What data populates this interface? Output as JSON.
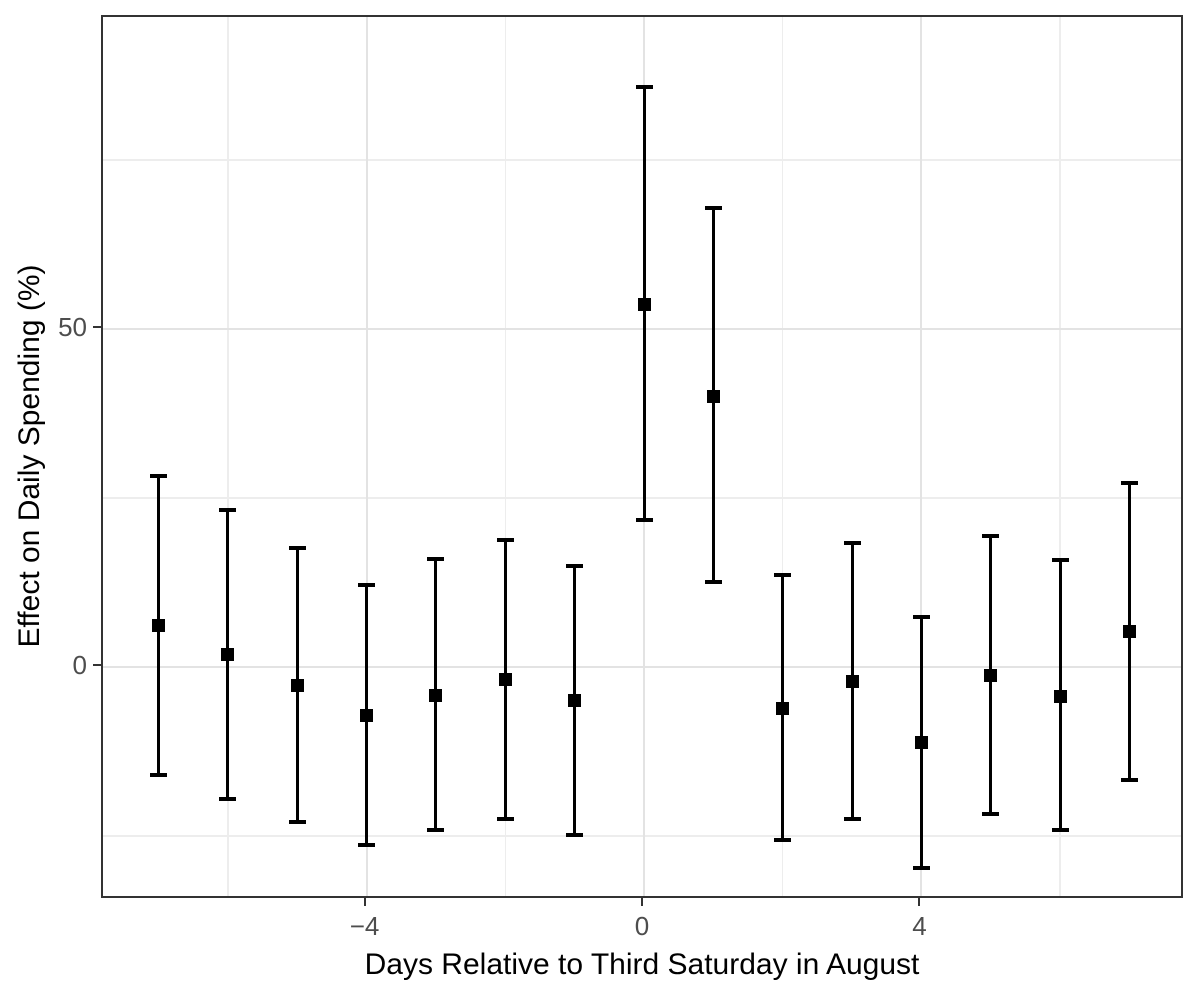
{
  "chart_data": {
    "type": "scatter",
    "subtype": "point-estimates-with-error-bars",
    "title": "",
    "xlabel": "Days Relative to Third Saturday in August",
    "ylabel": "Effect on Daily Spending (%)",
    "xlim": [
      -7.8,
      7.8
    ],
    "ylim": [
      -34.5,
      96.2
    ],
    "grid": "on",
    "legend": "none",
    "x_axis": {
      "tick_values": [
        -4,
        0,
        4
      ],
      "tick_labels": [
        "−4",
        "0",
        "4"
      ],
      "major_gridlines": [
        -4,
        0,
        4
      ],
      "minor_gridlines": [
        -6,
        -2,
        2,
        6
      ]
    },
    "y_axis": {
      "tick_values": [
        0,
        50
      ],
      "tick_labels": [
        "0",
        "50"
      ],
      "major_gridlines": [
        0,
        50
      ],
      "minor_gridlines": [
        -25,
        25,
        75
      ]
    },
    "series": [
      {
        "name": "estimate",
        "marker": "filled-square",
        "points": [
          {
            "day": -7,
            "estimate": 6.2,
            "ci_low": -16.0,
            "ci_high": 28.3
          },
          {
            "day": -6,
            "estimate": 1.9,
            "ci_low": -19.5,
            "ci_high": 23.2
          },
          {
            "day": -5,
            "estimate": -2.7,
            "ci_low": -22.9,
            "ci_high": 17.6
          },
          {
            "day": -4,
            "estimate": -7.2,
            "ci_low": -26.4,
            "ci_high": 12.1
          },
          {
            "day": -3,
            "estimate": -4.3,
            "ci_low": -24.1,
            "ci_high": 16.0
          },
          {
            "day": -2,
            "estimate": -1.9,
            "ci_low": -22.5,
            "ci_high": 18.8
          },
          {
            "day": -1,
            "estimate": -4.9,
            "ci_low": -24.9,
            "ci_high": 14.9
          },
          {
            "day": 0,
            "estimate": 53.7,
            "ci_low": 21.7,
            "ci_high": 85.8
          },
          {
            "day": 1,
            "estimate": 40.0,
            "ci_low": 12.5,
            "ci_high": 68.0
          },
          {
            "day": 2,
            "estimate": -6.2,
            "ci_low": -25.6,
            "ci_high": 13.6
          },
          {
            "day": 3,
            "estimate": -2.2,
            "ci_low": -22.5,
            "ci_high": 18.3
          },
          {
            "day": 4,
            "estimate": -11.2,
            "ci_low": -29.7,
            "ci_high": 7.4
          },
          {
            "day": 5,
            "estimate": -1.2,
            "ci_low": -21.7,
            "ci_high": 19.4
          },
          {
            "day": 6,
            "estimate": -4.4,
            "ci_low": -24.1,
            "ci_high": 15.8
          },
          {
            "day": 7,
            "estimate": 5.3,
            "ci_low": -16.7,
            "ci_high": 27.2
          }
        ]
      }
    ],
    "colors": {
      "background": "#ffffff",
      "panel_border": "#333333",
      "grid_major": "#e3e3e3",
      "grid_minor": "#ededed",
      "error_bar": "#000000",
      "marker": "#000000",
      "tick_label": "#4d4d4d",
      "axis_title": "#000000"
    }
  }
}
